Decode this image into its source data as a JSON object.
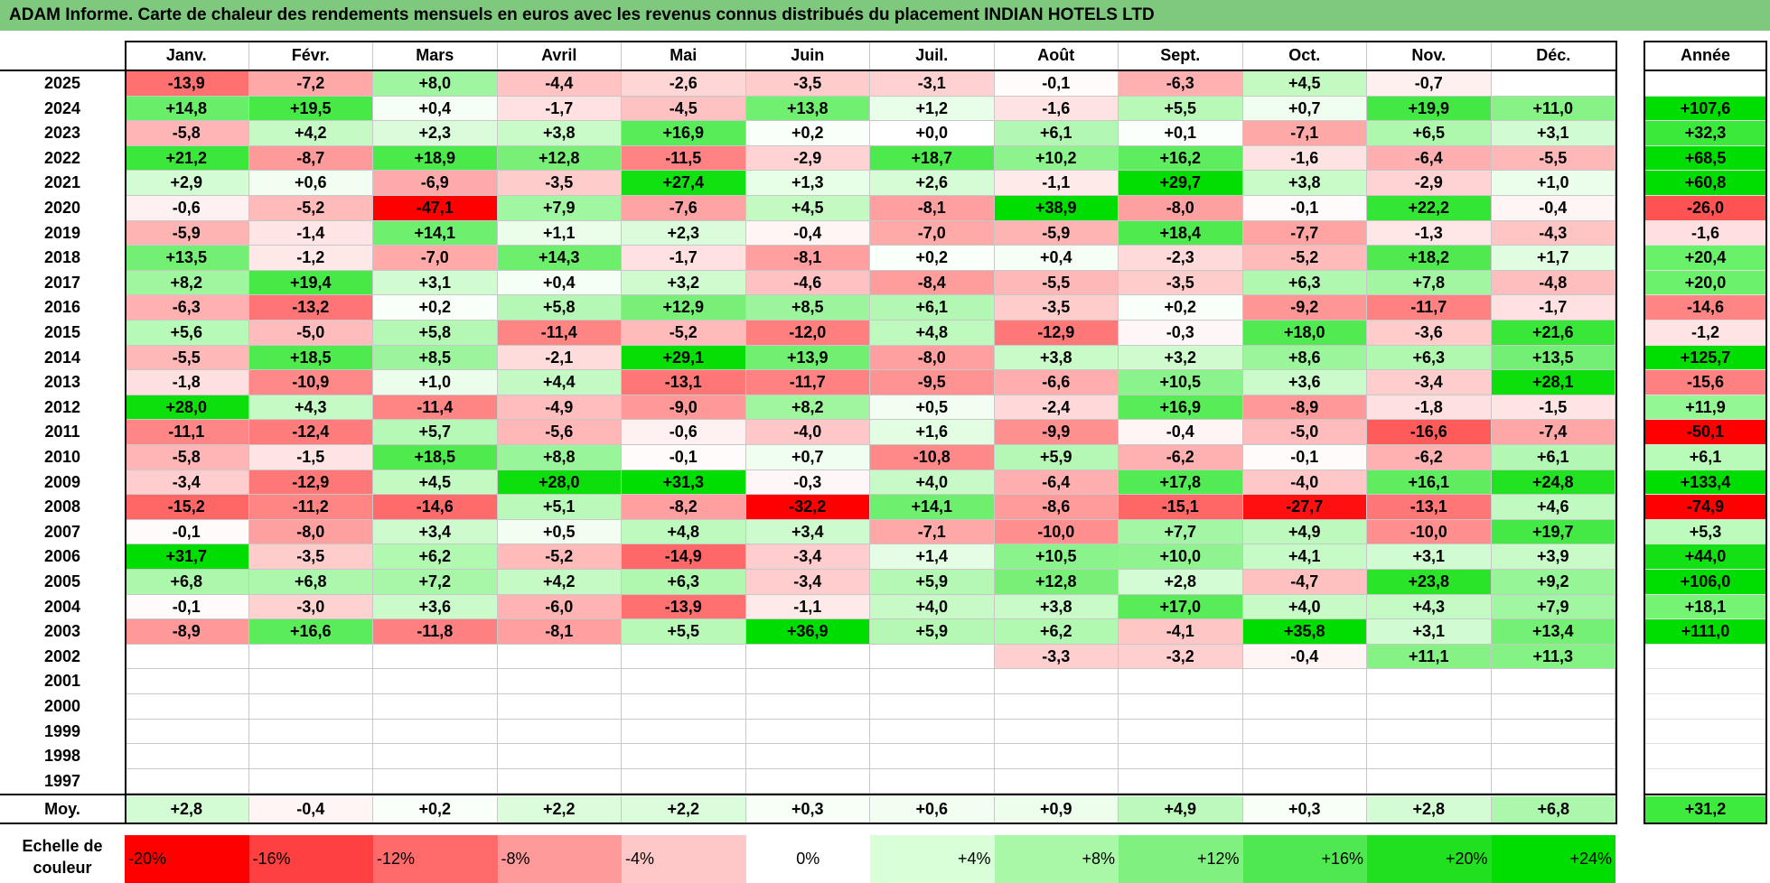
{
  "title": "ADAM Informe. Carte de chaleur des rendements mensuels en euros avec les revenus connus distribués du placement INDIAN HOTELS LTD",
  "chart_data": {
    "type": "heatmap",
    "title": "ADAM Informe. Carte de chaleur des rendements mensuels en euros avec les revenus connus distribués du placement INDIAN HOTELS LTD",
    "columns": [
      "Janv.",
      "Févr.",
      "Mars",
      "Avril",
      "Mai",
      "Juin",
      "Juil.",
      "Août",
      "Sept.",
      "Oct.",
      "Nov.",
      "Déc."
    ],
    "year_header": "Année",
    "rows": [
      {
        "year": "2025",
        "values": [
          "-13,9",
          "-7,2",
          "+8,0",
          "-4,4",
          "-2,6",
          "-3,5",
          "-3,1",
          "-0,1",
          "-6,3",
          "+4,5",
          "-0,7",
          ""
        ],
        "annual": ""
      },
      {
        "year": "2024",
        "values": [
          "+14,8",
          "+19,5",
          "+0,4",
          "-1,7",
          "-4,5",
          "+13,8",
          "+1,2",
          "-1,6",
          "+5,5",
          "+0,7",
          "+19,9",
          "+11,0"
        ],
        "annual": "+107,6"
      },
      {
        "year": "2023",
        "values": [
          "-5,8",
          "+4,2",
          "+2,3",
          "+3,8",
          "+16,9",
          "+0,2",
          "+0,0",
          "+6,1",
          "+0,1",
          "-7,1",
          "+6,5",
          "+3,1"
        ],
        "annual": "+32,3"
      },
      {
        "year": "2022",
        "values": [
          "+21,2",
          "-8,7",
          "+18,9",
          "+12,8",
          "-11,5",
          "-2,9",
          "+18,7",
          "+10,2",
          "+16,2",
          "-1,6",
          "-6,4",
          "-5,5"
        ],
        "annual": "+68,5"
      },
      {
        "year": "2021",
        "values": [
          "+2,9",
          "+0,6",
          "-6,9",
          "-3,5",
          "+27,4",
          "+1,3",
          "+2,6",
          "-1,1",
          "+29,7",
          "+3,8",
          "-2,9",
          "+1,0"
        ],
        "annual": "+60,8"
      },
      {
        "year": "2020",
        "values": [
          "-0,6",
          "-5,2",
          "-47,1",
          "+7,9",
          "-7,6",
          "+4,5",
          "-8,1",
          "+38,9",
          "-8,0",
          "-0,1",
          "+22,2",
          "-0,4"
        ],
        "annual": "-26,0"
      },
      {
        "year": "2019",
        "values": [
          "-5,9",
          "-1,4",
          "+14,1",
          "+1,1",
          "+2,3",
          "-0,4",
          "-7,0",
          "-5,9",
          "+18,4",
          "-7,7",
          "-1,3",
          "-4,3"
        ],
        "annual": "-1,6"
      },
      {
        "year": "2018",
        "values": [
          "+13,5",
          "-1,2",
          "-7,0",
          "+14,3",
          "-1,7",
          "-8,1",
          "+0,2",
          "+0,4",
          "-2,3",
          "-5,2",
          "+18,2",
          "+1,7"
        ],
        "annual": "+20,4"
      },
      {
        "year": "2017",
        "values": [
          "+8,2",
          "+19,4",
          "+3,1",
          "+0,4",
          "+3,2",
          "-4,6",
          "-8,4",
          "-5,5",
          "-3,5",
          "+6,3",
          "+7,8",
          "-4,8"
        ],
        "annual": "+20,0"
      },
      {
        "year": "2016",
        "values": [
          "-6,3",
          "-13,2",
          "+0,2",
          "+5,8",
          "+12,9",
          "+8,5",
          "+6,1",
          "-3,5",
          "+0,2",
          "-9,2",
          "-11,7",
          "-1,7"
        ],
        "annual": "-14,6"
      },
      {
        "year": "2015",
        "values": [
          "+5,6",
          "-5,0",
          "+5,8",
          "-11,4",
          "-5,2",
          "-12,0",
          "+4,8",
          "-12,9",
          "-0,3",
          "+18,0",
          "-3,6",
          "+21,6"
        ],
        "annual": "-1,2"
      },
      {
        "year": "2014",
        "values": [
          "-5,5",
          "+18,5",
          "+8,5",
          "-2,1",
          "+29,1",
          "+13,9",
          "-8,0",
          "+3,8",
          "+3,2",
          "+8,6",
          "+6,3",
          "+13,5"
        ],
        "annual": "+125,7"
      },
      {
        "year": "2013",
        "values": [
          "-1,8",
          "-10,9",
          "+1,0",
          "+4,4",
          "-13,1",
          "-11,7",
          "-9,5",
          "-6,6",
          "+10,5",
          "+3,6",
          "-3,4",
          "+28,1"
        ],
        "annual": "-15,6"
      },
      {
        "year": "2012",
        "values": [
          "+28,0",
          "+4,3",
          "-11,4",
          "-4,9",
          "-9,0",
          "+8,2",
          "+0,5",
          "-2,4",
          "+16,9",
          "-8,9",
          "-1,8",
          "-1,5"
        ],
        "annual": "+11,9"
      },
      {
        "year": "2011",
        "values": [
          "-11,1",
          "-12,4",
          "+5,7",
          "-5,6",
          "-0,6",
          "-4,0",
          "+1,6",
          "-9,9",
          "-0,4",
          "-5,0",
          "-16,6",
          "-7,4"
        ],
        "annual": "-50,1"
      },
      {
        "year": "2010",
        "values": [
          "-5,8",
          "-1,5",
          "+18,5",
          "+8,8",
          "-0,1",
          "+0,7",
          "-10,8",
          "+5,9",
          "-6,2",
          "-0,1",
          "-6,2",
          "+6,1"
        ],
        "annual": "+6,1"
      },
      {
        "year": "2009",
        "values": [
          "-3,4",
          "-12,9",
          "+4,5",
          "+28,0",
          "+31,3",
          "-0,3",
          "+4,0",
          "-6,4",
          "+17,8",
          "-4,0",
          "+16,1",
          "+24,8"
        ],
        "annual": "+133,4"
      },
      {
        "year": "2008",
        "values": [
          "-15,2",
          "-11,2",
          "-14,6",
          "+5,1",
          "-8,2",
          "-32,2",
          "+14,1",
          "-8,6",
          "-15,1",
          "-27,7",
          "-13,1",
          "+4,6"
        ],
        "annual": "-74,9"
      },
      {
        "year": "2007",
        "values": [
          "-0,1",
          "-8,0",
          "+3,4",
          "+0,5",
          "+4,8",
          "+3,4",
          "-7,1",
          "-10,0",
          "+7,7",
          "+4,9",
          "-10,0",
          "+19,7"
        ],
        "annual": "+5,3"
      },
      {
        "year": "2006",
        "values": [
          "+31,7",
          "-3,5",
          "+6,2",
          "-5,2",
          "-14,9",
          "-3,4",
          "+1,4",
          "+10,5",
          "+10,0",
          "+4,1",
          "+3,1",
          "+3,9"
        ],
        "annual": "+44,0"
      },
      {
        "year": "2005",
        "values": [
          "+6,8",
          "+6,8",
          "+7,2",
          "+4,2",
          "+6,3",
          "-3,4",
          "+5,9",
          "+12,8",
          "+2,8",
          "-4,7",
          "+23,8",
          "+9,2"
        ],
        "annual": "+106,0"
      },
      {
        "year": "2004",
        "values": [
          "-0,1",
          "-3,0",
          "+3,6",
          "-6,0",
          "-13,9",
          "-1,1",
          "+4,0",
          "+3,8",
          "+17,0",
          "+4,0",
          "+4,3",
          "+7,9"
        ],
        "annual": "+18,1"
      },
      {
        "year": "2003",
        "values": [
          "-8,9",
          "+16,6",
          "-11,8",
          "-8,1",
          "+5,5",
          "+36,9",
          "+5,9",
          "+6,2",
          "-4,1",
          "+35,8",
          "+3,1",
          "+13,4"
        ],
        "annual": "+111,0"
      },
      {
        "year": "2002",
        "values": [
          "",
          "",
          "",
          "",
          "",
          "",
          "",
          "-3,3",
          "-3,2",
          "-0,4",
          "+11,1",
          "+11,3"
        ],
        "annual": ""
      },
      {
        "year": "2001",
        "values": [
          "",
          "",
          "",
          "",
          "",
          "",
          "",
          "",
          "",
          "",
          "",
          ""
        ],
        "annual": ""
      },
      {
        "year": "2000",
        "values": [
          "",
          "",
          "",
          "",
          "",
          "",
          "",
          "",
          "",
          "",
          "",
          ""
        ],
        "annual": ""
      },
      {
        "year": "1999",
        "values": [
          "",
          "",
          "",
          "",
          "",
          "",
          "",
          "",
          "",
          "",
          "",
          ""
        ],
        "annual": ""
      },
      {
        "year": "1998",
        "values": [
          "",
          "",
          "",
          "",
          "",
          "",
          "",
          "",
          "",
          "",
          "",
          ""
        ],
        "annual": ""
      },
      {
        "year": "1997",
        "values": [
          "",
          "",
          "",
          "",
          "",
          "",
          "",
          "",
          "",
          "",
          "",
          ""
        ],
        "annual": ""
      }
    ],
    "average": {
      "label": "Moy.",
      "values": [
        "+2,8",
        "-0,4",
        "+0,2",
        "+2,2",
        "+2,2",
        "+0,3",
        "+0,6",
        "+0,9",
        "+4,9",
        "+0,3",
        "+2,8",
        "+6,8"
      ],
      "annual": "+31,2"
    },
    "color_scale": {
      "label": "Echelle de couleur",
      "stops": [
        "-20%",
        "-16%",
        "-12%",
        "-8%",
        "-4%",
        "0%",
        "+4%",
        "+8%",
        "+12%",
        "+16%",
        "+20%",
        "+24%"
      ],
      "colors": [
        "#ff0000",
        "#ff4040",
        "#ff6a6a",
        "#ff9a9a",
        "#ffc8c8",
        "#ffffff",
        "#d8ffd8",
        "#a8f8a8",
        "#80f080",
        "#50e850",
        "#20e020",
        "#00dd00"
      ]
    }
  }
}
